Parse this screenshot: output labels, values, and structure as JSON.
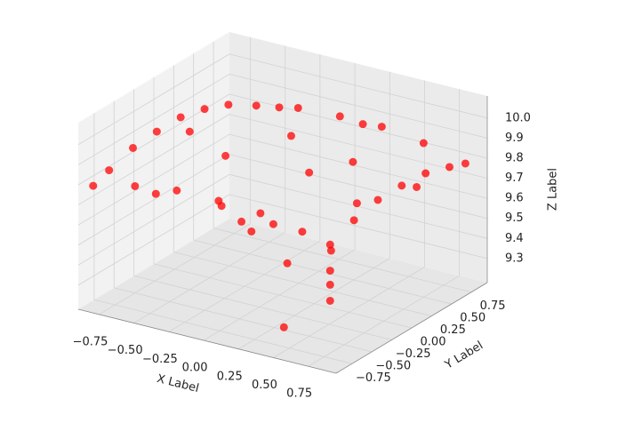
{
  "chart_data": {
    "type": "scatter3d",
    "xlabel": "X Label",
    "ylabel": "Y Label",
    "zlabel": "Z Label",
    "color": "#ff0000",
    "x": [
      -0.85,
      -0.55,
      -0.25,
      0.05,
      0.35,
      0.65,
      0.85,
      0.85,
      0.85,
      0.85,
      0.85,
      0.85,
      0.85,
      0.55,
      0.25,
      -0.05,
      -0.35,
      -0.65,
      -0.85,
      -0.85,
      -0.85,
      -0.85,
      -0.85,
      -0.85,
      0.85,
      0.85,
      0.85,
      -0.3,
      -0.1,
      0.0,
      0.1,
      -0.5,
      0.3,
      -0.2,
      0.5,
      0.6,
      -0.6,
      0.2,
      -0.4,
      0.7,
      0.4,
      -0.7,
      0.1,
      0.33
    ],
    "y": [
      -0.85,
      -0.85,
      -0.85,
      -0.85,
      -0.85,
      -0.85,
      -0.85,
      -0.55,
      -0.25,
      0.05,
      0.35,
      0.65,
      0.85,
      0.85,
      0.85,
      0.85,
      0.85,
      0.85,
      0.85,
      0.55,
      0.25,
      -0.05,
      -0.35,
      -0.65,
      -0.85,
      -0.85,
      -0.85,
      -0.2,
      -0.3,
      -0.35,
      -0.25,
      0.2,
      0.4,
      0.5,
      0.1,
      -0.4,
      -0.5,
      0.7,
      0.7,
      0.5,
      -0.6,
      0.1,
      0.2,
      -0.52
    ],
    "z": [
      9.78,
      9.83,
      9.86,
      9.86,
      9.85,
      9.81,
      9.78,
      9.83,
      9.86,
      9.86,
      9.85,
      9.81,
      9.78,
      9.83,
      9.86,
      9.86,
      9.85,
      9.81,
      9.78,
      9.83,
      9.86,
      9.86,
      9.85,
      9.81,
      9.65,
      9.58,
      9.5,
      9.62,
      9.6,
      9.58,
      9.61,
      9.74,
      9.8,
      9.82,
      9.7,
      9.6,
      9.7,
      9.9,
      9.88,
      9.72,
      9.55,
      9.85,
      9.76,
      9.2
    ],
    "xlim": [
      -0.9,
      0.95
    ],
    "ylim": [
      -0.95,
      0.95
    ],
    "zlim": [
      9.18,
      10.11
    ],
    "xticks": [
      {
        "value": -0.75,
        "label": "−0.75"
      },
      {
        "value": -0.5,
        "label": "−0.50"
      },
      {
        "value": -0.25,
        "label": "−0.25"
      },
      {
        "value": 0,
        "label": "0.00"
      },
      {
        "value": 0.25,
        "label": "0.25"
      },
      {
        "value": 0.5,
        "label": "0.50"
      },
      {
        "value": 0.75,
        "label": "0.75"
      }
    ],
    "yticks": [
      {
        "value": -0.75,
        "label": "−0.75"
      },
      {
        "value": -0.5,
        "label": "−0.50"
      },
      {
        "value": -0.25,
        "label": "−0.25"
      },
      {
        "value": 0,
        "label": "0.00"
      },
      {
        "value": 0.25,
        "label": "0.25"
      },
      {
        "value": 0.5,
        "label": "0.50"
      },
      {
        "value": 0.75,
        "label": "0.75"
      }
    ],
    "zticks": [
      9.3,
      9.4,
      9.5,
      9.6,
      9.7,
      9.8,
      9.9,
      {
        "value": 10,
        "label": "10.0"
      }
    ],
    "grid": true
  }
}
